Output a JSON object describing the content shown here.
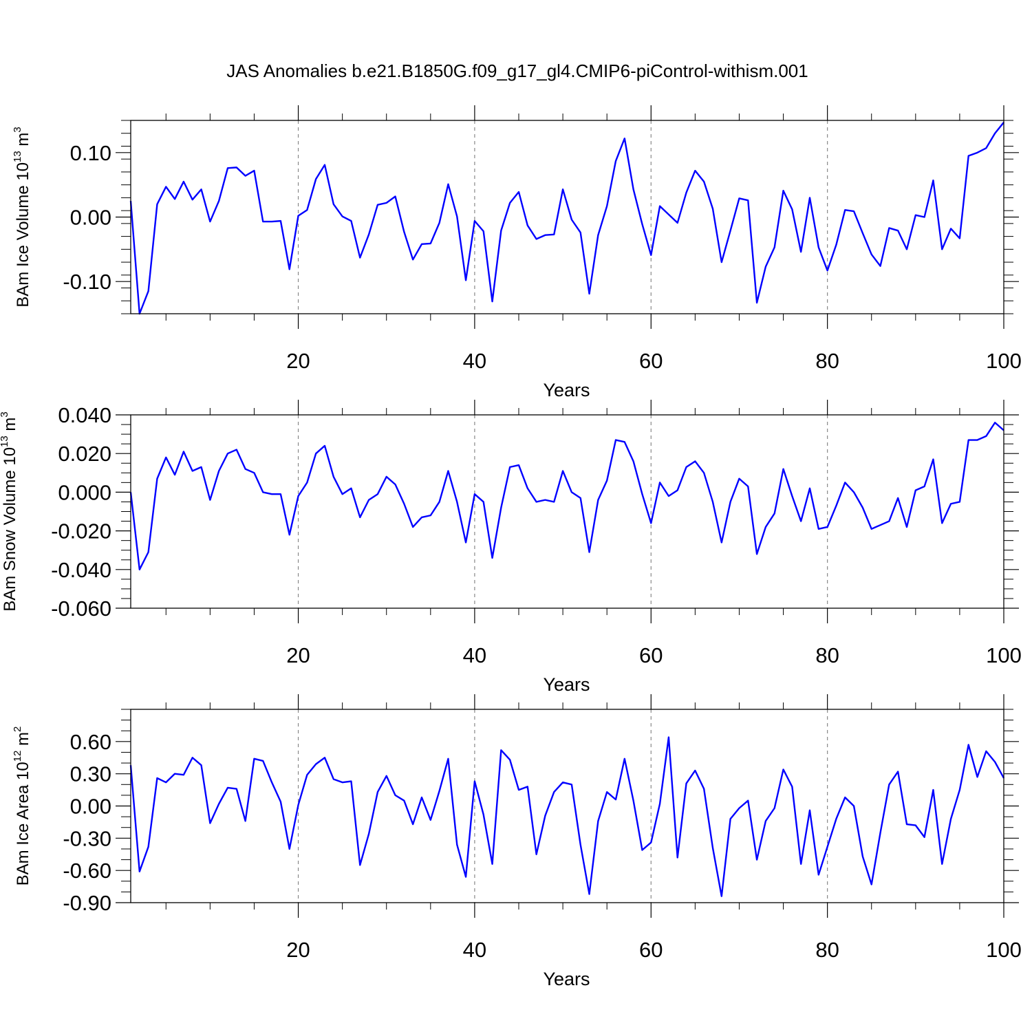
{
  "title": "JAS Anomalies b.e21.B1850G.f09_g17_gl4.CMIP6-piControl-withism.001",
  "colors": {
    "line": "#0000ff",
    "axis": "#000000",
    "grid": "#888888"
  },
  "chart_data": [
    {
      "type": "line",
      "ylabel": {
        "main": "BAm Ice Volume 10",
        "exponent": "13",
        "unit": " m",
        "unit_exponent": "3"
      },
      "xlabel": "Years",
      "xlim": [
        1,
        100
      ],
      "ylim": [
        -0.15,
        0.15
      ],
      "xticks": [
        20,
        40,
        60,
        80,
        100
      ],
      "xtick_labels": [
        "20",
        "40",
        "60",
        "80",
        "100"
      ],
      "yticks": [
        -0.1,
        0.0,
        0.1
      ],
      "ytick_labels": [
        "-0.10",
        "0.00",
        "0.10"
      ],
      "yminor_step": 0.02,
      "grid": "dashed vertical at major x ticks",
      "series": [
        {
          "name": "BAm Ice Volume",
          "x_start": 1,
          "values": [
            0.025,
            -0.15,
            -0.115,
            0.02,
            0.047,
            0.028,
            0.055,
            0.027,
            0.043,
            -0.007,
            0.025,
            0.076,
            0.077,
            0.064,
            0.072,
            -0.007,
            -0.007,
            -0.006,
            -0.081,
            0.002,
            0.011,
            0.059,
            0.081,
            0.02,
            0.001,
            -0.006,
            -0.063,
            -0.027,
            0.019,
            0.022,
            0.032,
            -0.023,
            -0.066,
            -0.042,
            -0.041,
            -0.009,
            0.051,
            0.001,
            -0.098,
            -0.006,
            -0.022,
            -0.131,
            -0.021,
            0.022,
            0.039,
            -0.013,
            -0.034,
            -0.028,
            -0.027,
            0.043,
            -0.004,
            -0.024,
            -0.119,
            -0.028,
            0.017,
            0.087,
            0.122,
            0.043,
            -0.011,
            -0.059,
            0.017,
            0.004,
            -0.009,
            0.038,
            0.072,
            0.055,
            0.013,
            -0.07,
            -0.021,
            0.029,
            0.026,
            -0.133,
            -0.077,
            -0.047,
            0.041,
            0.012,
            -0.054,
            0.03,
            -0.047,
            -0.083,
            -0.043,
            0.011,
            0.009,
            -0.025,
            -0.058,
            -0.076,
            -0.017,
            -0.021,
            -0.05,
            0.003,
            0.0,
            0.057,
            -0.05,
            -0.018,
            -0.033,
            0.095,
            0.1,
            0.107,
            0.13,
            0.147
          ]
        }
      ]
    },
    {
      "type": "line",
      "ylabel": {
        "main": "BAm Snow Volume 10",
        "exponent": "13",
        "unit": " m",
        "unit_exponent": "3"
      },
      "xlabel": "Years",
      "xlim": [
        1,
        100
      ],
      "ylim": [
        -0.06,
        0.04
      ],
      "xticks": [
        20,
        40,
        60,
        80,
        100
      ],
      "xtick_labels": [
        "20",
        "40",
        "60",
        "80",
        "100"
      ],
      "yticks": [
        -0.06,
        -0.04,
        -0.02,
        0.0,
        0.02,
        0.04
      ],
      "ytick_labels": [
        "-0.060",
        "-0.040",
        "-0.020",
        "0.000",
        "0.020",
        "0.040"
      ],
      "yminor_step": 0.005,
      "grid": "dashed vertical at major x ticks",
      "series": [
        {
          "name": "BAm Snow Volume",
          "x_start": 1,
          "values": [
            0.0,
            -0.04,
            -0.031,
            0.007,
            0.018,
            0.009,
            0.021,
            0.011,
            0.013,
            -0.004,
            0.011,
            0.02,
            0.022,
            0.012,
            0.01,
            0.0,
            -0.001,
            -0.001,
            -0.022,
            -0.002,
            0.005,
            0.02,
            0.024,
            0.008,
            -0.001,
            0.002,
            -0.013,
            -0.004,
            -0.001,
            0.008,
            0.004,
            -0.006,
            -0.018,
            -0.013,
            -0.012,
            -0.005,
            0.011,
            -0.005,
            -0.026,
            -0.001,
            -0.005,
            -0.034,
            -0.008,
            0.013,
            0.014,
            0.002,
            -0.005,
            -0.004,
            -0.005,
            0.011,
            0.0,
            -0.003,
            -0.031,
            -0.004,
            0.006,
            0.027,
            0.026,
            0.016,
            -0.001,
            -0.016,
            0.005,
            -0.002,
            0.001,
            0.013,
            0.016,
            0.01,
            -0.005,
            -0.026,
            -0.005,
            0.007,
            0.003,
            -0.032,
            -0.018,
            -0.011,
            0.012,
            -0.002,
            -0.015,
            0.002,
            -0.019,
            -0.018,
            -0.007,
            0.005,
            0.0,
            -0.008,
            -0.019,
            -0.017,
            -0.015,
            -0.003,
            -0.018,
            0.001,
            0.003,
            0.017,
            -0.016,
            -0.006,
            -0.005,
            0.027,
            0.027,
            0.029,
            0.036,
            0.032
          ]
        }
      ]
    },
    {
      "type": "line",
      "ylabel": {
        "main": "BAm Ice Area 10",
        "exponent": "12",
        "unit": " m",
        "unit_exponent": "2"
      },
      "xlabel": "Years",
      "xlim": [
        1,
        100
      ],
      "ylim": [
        -0.9,
        0.9
      ],
      "xticks": [
        20,
        40,
        60,
        80,
        100
      ],
      "xtick_labels": [
        "20",
        "40",
        "60",
        "80",
        "100"
      ],
      "yticks": [
        -0.9,
        -0.6,
        -0.3,
        0.0,
        0.3,
        0.6
      ],
      "ytick_labels": [
        "-0.90",
        "-0.60",
        "-0.30",
        "0.00",
        "0.30",
        "0.60"
      ],
      "yminor_step": 0.1,
      "grid": "dashed vertical at major x ticks",
      "series": [
        {
          "name": "BAm Ice Area",
          "x_start": 1,
          "values": [
            0.38,
            -0.61,
            -0.38,
            0.26,
            0.22,
            0.3,
            0.29,
            0.45,
            0.38,
            -0.16,
            0.02,
            0.17,
            0.16,
            -0.14,
            0.44,
            0.42,
            0.22,
            0.04,
            -0.4,
            0.01,
            0.29,
            0.39,
            0.45,
            0.25,
            0.22,
            0.23,
            -0.55,
            -0.26,
            0.13,
            0.28,
            0.1,
            0.05,
            -0.17,
            0.08,
            -0.13,
            0.14,
            0.44,
            -0.36,
            -0.66,
            0.23,
            -0.08,
            -0.54,
            0.52,
            0.43,
            0.15,
            0.18,
            -0.45,
            -0.09,
            0.13,
            0.22,
            0.2,
            -0.36,
            -0.82,
            -0.14,
            0.13,
            0.06,
            0.44,
            0.05,
            -0.41,
            -0.34,
            0.02,
            0.64,
            -0.48,
            0.21,
            0.33,
            0.16,
            -0.39,
            -0.84,
            -0.12,
            -0.02,
            0.05,
            -0.5,
            -0.14,
            -0.02,
            0.34,
            0.18,
            -0.54,
            -0.04,
            -0.64,
            -0.38,
            -0.12,
            0.08,
            0.0,
            -0.47,
            -0.73,
            -0.25,
            0.2,
            0.32,
            -0.17,
            -0.18,
            -0.29,
            0.15,
            -0.54,
            -0.12,
            0.15,
            0.57,
            0.27,
            0.51,
            0.41,
            0.26
          ]
        }
      ]
    }
  ]
}
